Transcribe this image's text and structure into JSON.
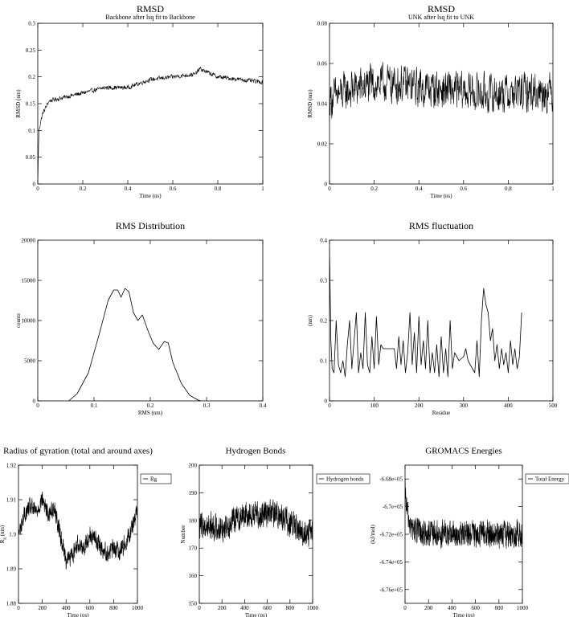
{
  "chart_data": [
    {
      "type": "line",
      "title": "RMSD",
      "subtitle": "Backbone after lsq fit to Backbone",
      "xlabel": "Time (ns)",
      "ylabel": "RMSD (nm)",
      "xlim": [
        0,
        1
      ],
      "ylim": [
        0,
        0.3
      ],
      "xticks": [
        "0",
        "0.2",
        "0.4",
        "0.6",
        "0.8",
        "1"
      ],
      "yticks": [
        "0",
        "0.05",
        "0.1",
        "0.15",
        "0.2",
        "0.25",
        "0.3"
      ],
      "noise": 0.005,
      "series": [
        {
          "name": "",
          "x": [
            0,
            0.005,
            0.02,
            0.05,
            0.1,
            0.2,
            0.3,
            0.4,
            0.5,
            0.6,
            0.7,
            0.72,
            0.8,
            0.9,
            1.0
          ],
          "y": [
            0.0,
            0.1,
            0.13,
            0.155,
            0.16,
            0.17,
            0.18,
            0.18,
            0.195,
            0.2,
            0.205,
            0.215,
            0.2,
            0.195,
            0.19
          ]
        }
      ]
    },
    {
      "type": "line",
      "title": "RMSD",
      "subtitle": "UNK after lsq fit to UNK",
      "xlabel": "Time (ns)",
      "ylabel": "RMSD (nm)",
      "xlim": [
        0,
        1
      ],
      "ylim": [
        0,
        0.08
      ],
      "xticks": [
        "0",
        "0.2",
        "0.4",
        "0.6",
        "0.8",
        "1"
      ],
      "yticks": [
        "0",
        "0.02",
        "0.04",
        "0.06",
        "0.08"
      ],
      "noise": 0.012,
      "series": [
        {
          "name": "",
          "x": [
            0,
            0.05,
            0.1,
            0.2,
            0.3,
            0.4,
            0.5,
            0.6,
            0.7,
            0.8,
            0.9,
            1.0
          ],
          "y": [
            0.042,
            0.045,
            0.047,
            0.05,
            0.05,
            0.048,
            0.047,
            0.046,
            0.045,
            0.045,
            0.046,
            0.046
          ]
        }
      ]
    },
    {
      "type": "line",
      "title": "RMS Distribution",
      "xlabel": "RMS (nm)",
      "ylabel": "counts",
      "xlim": [
        0,
        0.4
      ],
      "ylim": [
        0,
        20000
      ],
      "xticks": [
        "0",
        "0.1",
        "0.2",
        "0.3",
        "0.4"
      ],
      "yticks": [
        "0",
        "5000",
        "10000",
        "15000",
        "20000"
      ],
      "noise": 0,
      "series": [
        {
          "name": "",
          "x": [
            0.055,
            0.07,
            0.09,
            0.11,
            0.125,
            0.135,
            0.142,
            0.148,
            0.155,
            0.162,
            0.17,
            0.178,
            0.186,
            0.195,
            0.205,
            0.215,
            0.225,
            0.232,
            0.24,
            0.255,
            0.27,
            0.285,
            0.29
          ],
          "y": [
            0,
            900,
            3500,
            8500,
            12500,
            13800,
            13800,
            12900,
            14000,
            13600,
            11000,
            10000,
            10700,
            8900,
            7200,
            6400,
            7400,
            7200,
            4800,
            2200,
            700,
            100,
            0
          ]
        }
      ]
    },
    {
      "type": "line",
      "title": "RMS fluctuation",
      "xlabel": "Residue",
      "ylabel": "(nm)",
      "xlim": [
        0,
        500
      ],
      "ylim": [
        0,
        0.4
      ],
      "xticks": [
        "0",
        "100",
        "200",
        "300",
        "400",
        "500"
      ],
      "yticks": [
        "0",
        "0.1",
        "0.2",
        "0.3",
        "0.4"
      ],
      "noise": 0,
      "series": [
        {
          "name": "",
          "x": [
            0,
            3,
            6,
            10,
            15,
            20,
            25,
            30,
            35,
            40,
            45,
            50,
            55,
            60,
            65,
            70,
            75,
            80,
            85,
            90,
            95,
            100,
            105,
            110,
            115,
            120,
            130,
            145,
            150,
            155,
            160,
            165,
            170,
            175,
            180,
            185,
            190,
            195,
            200,
            205,
            210,
            215,
            220,
            225,
            230,
            235,
            240,
            245,
            250,
            255,
            260,
            265,
            270,
            275,
            280,
            290,
            300,
            305,
            310,
            315,
            320,
            325,
            330,
            335,
            340,
            345,
            350,
            355,
            360,
            365,
            370,
            375,
            380,
            385,
            390,
            395,
            400,
            405,
            410,
            415,
            420,
            425,
            430
          ],
          "y": [
            0.38,
            0.15,
            0.08,
            0.07,
            0.2,
            0.09,
            0.07,
            0.1,
            0.06,
            0.14,
            0.2,
            0.08,
            0.15,
            0.22,
            0.07,
            0.12,
            0.08,
            0.22,
            0.09,
            0.07,
            0.16,
            0.08,
            0.21,
            0.09,
            0.14,
            0.13,
            0.13,
            0.13,
            0.08,
            0.16,
            0.09,
            0.15,
            0.07,
            0.12,
            0.22,
            0.09,
            0.17,
            0.07,
            0.21,
            0.09,
            0.15,
            0.08,
            0.2,
            0.07,
            0.12,
            0.07,
            0.14,
            0.06,
            0.16,
            0.07,
            0.13,
            0.06,
            0.2,
            0.08,
            0.12,
            0.1,
            0.11,
            0.13,
            0.1,
            0.09,
            0.08,
            0.07,
            0.15,
            0.06,
            0.2,
            0.28,
            0.24,
            0.22,
            0.15,
            0.18,
            0.1,
            0.14,
            0.08,
            0.13,
            0.09,
            0.12,
            0.07,
            0.15,
            0.09,
            0.13,
            0.08,
            0.11,
            0.22
          ]
        }
      ]
    },
    {
      "type": "line",
      "title": "Radius of gyration (total and around axes)",
      "xlabel": "Time (ps)",
      "ylabel": "R",
      "ylabel_sub": "g",
      "ylabel_unit": "(nm)",
      "legend": [
        "Rg"
      ],
      "xlim": [
        0,
        1000
      ],
      "ylim": [
        1.88,
        1.93
      ],
      "xticks": [
        "0",
        "200",
        "400",
        "600",
        "800",
        "1000"
      ],
      "yticks": [
        "1.88",
        "1.89",
        "1.9",
        "1.91",
        "1.92"
      ],
      "noise": 0.004,
      "series": [
        {
          "name": "Rg",
          "x": [
            0,
            50,
            100,
            150,
            200,
            250,
            300,
            350,
            400,
            450,
            500,
            550,
            600,
            650,
            700,
            750,
            800,
            850,
            900,
            950,
            1000
          ],
          "y": [
            1.905,
            1.912,
            1.915,
            1.913,
            1.918,
            1.912,
            1.915,
            1.905,
            1.896,
            1.897,
            1.902,
            1.9,
            1.905,
            1.903,
            1.9,
            1.898,
            1.9,
            1.899,
            1.902,
            1.907,
            1.914
          ]
        }
      ]
    },
    {
      "type": "line",
      "title": "Hydrogen Bonds",
      "xlabel": "Time (ps)",
      "ylabel": "Number",
      "legend": [
        "Hydrogen bonds"
      ],
      "xlim": [
        0,
        1000
      ],
      "ylim": [
        150,
        200
      ],
      "xticks": [
        "0",
        "200",
        "400",
        "600",
        "800",
        "1000"
      ],
      "yticks": [
        "150",
        "160",
        "170",
        "180",
        "190",
        "200"
      ],
      "noise": 6,
      "series": [
        {
          "name": "Hydrogen bonds",
          "x": [
            0,
            100,
            200,
            300,
            400,
            500,
            600,
            700,
            800,
            900,
            1000
          ],
          "y": [
            178,
            178,
            177,
            180,
            182,
            182,
            183,
            182,
            179,
            176,
            175
          ]
        }
      ]
    },
    {
      "type": "line",
      "title": "GROMACS Energies",
      "xlabel": "Time (ps)",
      "ylabel": "(kJ/mol)",
      "legend": [
        "Total Energy"
      ],
      "xlim": [
        0,
        1000
      ],
      "ylim": [
        -677000,
        -667000
      ],
      "xticks": [
        "0",
        "200",
        "400",
        "600",
        "800",
        "1000"
      ],
      "yticks": [
        "-6.76e+05",
        "-6.74e+05",
        "-6.72e+05",
        "-6.7e+05",
        "-6.68e+05"
      ],
      "ytick_values": [
        -676000,
        -674000,
        -672000,
        -670000,
        -668000
      ],
      "noise": 1200,
      "series": [
        {
          "name": "Total Energy",
          "x": [
            0,
            20,
            50,
            100,
            200,
            300,
            400,
            500,
            600,
            700,
            800,
            900,
            1000
          ],
          "y": [
            -669000,
            -670500,
            -671500,
            -671800,
            -672000,
            -672000,
            -672000,
            -672100,
            -671900,
            -672000,
            -672100,
            -672000,
            -672000
          ]
        }
      ]
    }
  ]
}
